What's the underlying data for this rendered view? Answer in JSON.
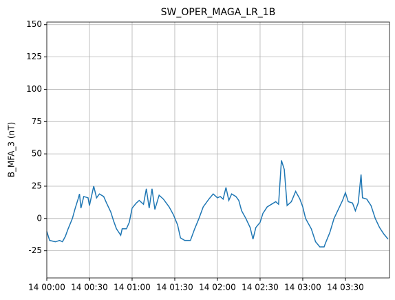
{
  "chart_data": {
    "type": "line",
    "title": "SW_OPER_MAGA_LR_1B",
    "y_label": "B_MFA_3 (nT)",
    "x": [
      "14 00:00",
      "14 00:02",
      "14 00:06",
      "14 00:09",
      "14 00:11",
      "14 00:13",
      "14 00:15",
      "14 00:18",
      "14 00:20",
      "14 00:22",
      "14 00:23",
      "14 00:24",
      "14 00:26",
      "14 00:29",
      "14 00:30",
      "14 00:33",
      "14 00:35",
      "14 00:37",
      "14 00:40",
      "14 00:42",
      "14 00:45",
      "14 00:47",
      "14 00:49",
      "14 00:52",
      "14 00:53",
      "14 00:56",
      "14 00:58",
      "14 01:00",
      "14 01:03",
      "14 01:05",
      "14 01:08",
      "14 01:10",
      "14 01:12",
      "14 01:14",
      "14 01:16",
      "14 01:19",
      "14 01:22",
      "14 01:26",
      "14 01:29",
      "14 01:32",
      "14 01:34",
      "14 01:37",
      "14 01:41",
      "14 01:44",
      "14 01:47",
      "14 01:50",
      "14 01:54",
      "14 01:57",
      "14 02:00",
      "14 02:02",
      "14 02:04",
      "14 02:06",
      "14 02:08",
      "14 02:10",
      "14 02:13",
      "14 02:15",
      "14 02:17",
      "14 02:20",
      "14 02:23",
      "14 02:25",
      "14 02:27",
      "14 02:30",
      "14 02:32",
      "14 02:35",
      "14 02:38",
      "14 02:41",
      "14 02:43",
      "14 02:45",
      "14 02:47",
      "14 02:49",
      "14 02:52",
      "14 02:55",
      "14 02:58",
      "14 03:00",
      "14 03:02",
      "14 03:06",
      "14 03:09",
      "14 03:12",
      "14 03:15",
      "14 03:16",
      "14 03:19",
      "14 03:22",
      "14 03:25",
      "14 03:28",
      "14 03:30",
      "14 03:32",
      "14 03:35",
      "14 03:37",
      "14 03:39",
      "14 03:41",
      "14 03:42",
      "14 03:45",
      "14 03:48",
      "14 03:51",
      "14 03:54",
      "14 03:57",
      "14 04:00"
    ],
    "series": [
      {
        "name": "B_MFA_3",
        "color": "#1f77b4",
        "values": [
          -10,
          -17,
          -18,
          -17,
          -18,
          -14,
          -8,
          0,
          8,
          15,
          19,
          8,
          17,
          16,
          10,
          25,
          16,
          19,
          17,
          12,
          5,
          -2,
          -8,
          -13,
          -8,
          -8,
          -3,
          8,
          12,
          14,
          11,
          23,
          8,
          23,
          7,
          18,
          15,
          9,
          3,
          -5,
          -15,
          -17,
          -17,
          -8,
          0,
          9,
          15,
          19,
          16,
          17,
          15,
          24,
          14,
          19,
          17,
          14,
          6,
          0,
          -7,
          -16,
          -7,
          -3,
          4,
          9,
          11,
          13,
          11,
          45,
          38,
          10,
          13,
          21,
          15,
          9,
          0,
          -8,
          -18,
          -22,
          -22,
          -19,
          -11,
          0,
          7,
          14,
          20,
          13,
          12,
          6,
          12,
          34,
          16,
          15,
          10,
          0,
          -7,
          -12,
          -16
        ]
      }
    ],
    "xlim": [
      "14 00:00",
      "14 04:01"
    ],
    "xticks": [
      "14 00:00",
      "14 00:30",
      "14 01:00",
      "14 01:30",
      "14 02:00",
      "14 02:30",
      "14 03:00",
      "14 03:30"
    ],
    "ylim": [
      -46,
      152
    ],
    "yticks": [
      -25,
      0,
      25,
      50,
      75,
      100,
      125,
      150
    ],
    "grid": true
  }
}
